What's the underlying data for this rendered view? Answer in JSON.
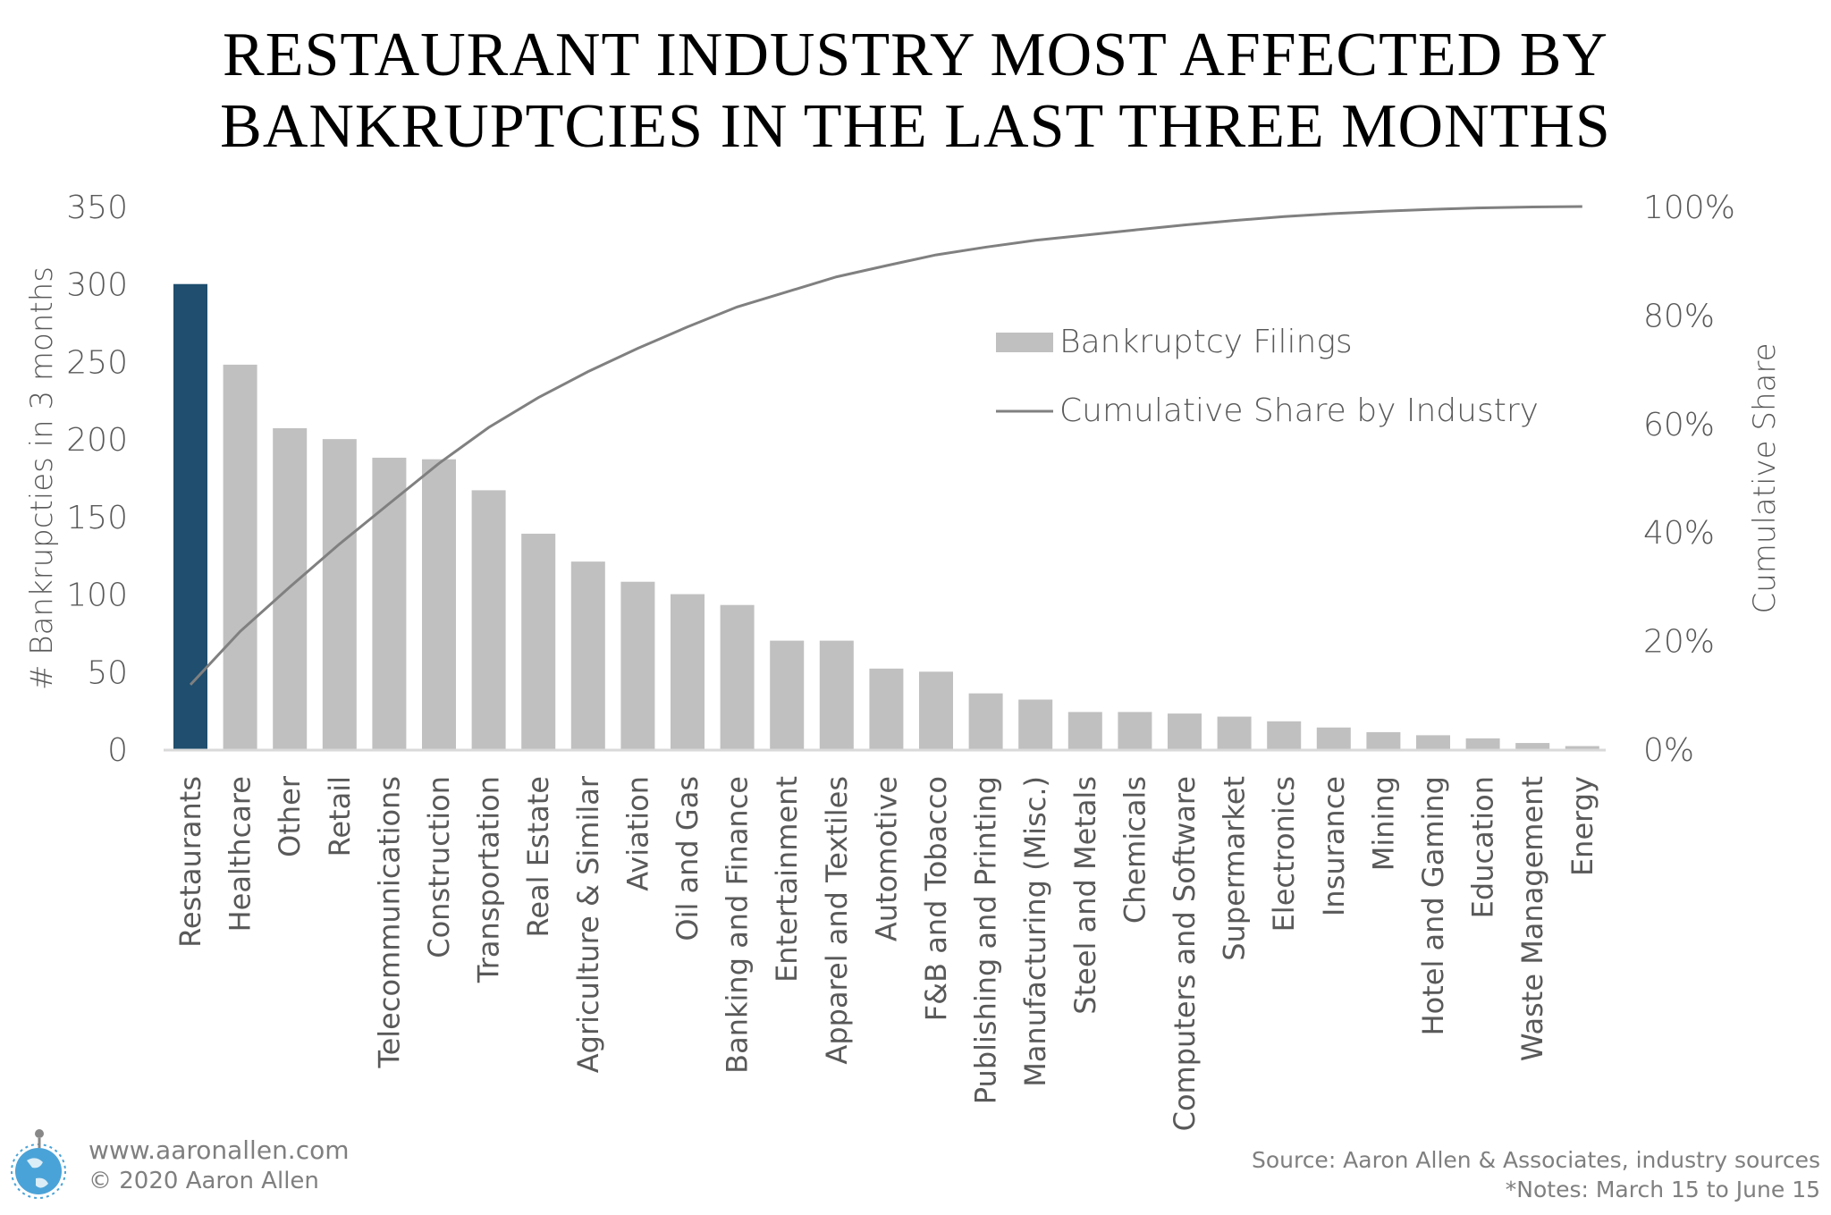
{
  "chart_data": {
    "type": "bar",
    "title": [
      "RESTAURANT INDUSTRY MOST AFFECTED BY",
      "BANKRUPTCIES IN THE LAST THREE MONTHS"
    ],
    "categories": [
      "Restaurants",
      "Healthcare",
      "Other",
      "Retail",
      "Telecommunications",
      "Construction",
      "Transportation",
      "Real Estate",
      "Agriculture & Similar",
      "Aviation",
      "Oil and Gas",
      "Banking and Finance",
      "Entertainment",
      "Apparel and Textiles",
      "Automotive",
      "F&B and Tobacco",
      "Publishing and Printing",
      "Manufacturing (Misc.)",
      "Steel and Metals",
      "Chemicals",
      "Computers and Software",
      "Supermarket",
      "Electronics",
      "Insurance",
      "Mining",
      "Hotel and Gaming",
      "Education",
      "Waste Management",
      "Energy"
    ],
    "series": [
      {
        "name": "Bankruptcy Filings",
        "type": "bar",
        "axis": "left",
        "values": [
          300,
          248,
          207,
          200,
          188,
          187,
          167,
          139,
          121,
          108,
          100,
          93,
          70,
          70,
          52,
          50,
          36,
          32,
          24,
          24,
          23,
          21,
          18,
          14,
          11,
          9,
          7,
          4,
          2
        ]
      },
      {
        "name": "Cumulative Share by Industry",
        "type": "line",
        "axis": "right",
        "derived": "cumulative percent of bar values"
      }
    ],
    "ylabel": "# Bankrupcties in 3 months",
    "ylabel_right": "Cumulative Share",
    "ylim": [
      0,
      350
    ],
    "yticks": [
      "0",
      "50",
      "100",
      "150",
      "200",
      "250",
      "300",
      "350"
    ],
    "ylim_right": [
      0,
      100
    ],
    "yticks_right": [
      "0%",
      "20%",
      "40%",
      "60%",
      "80%",
      "100%"
    ],
    "legend_position": "top-right (inside plot)",
    "grid": false,
    "colors": {
      "highlight": "#1f4e6e",
      "bar": "#c0c0c0",
      "line": "#808080",
      "axis": "#d9d9d9"
    }
  },
  "footer": {
    "website": "www.aaronallen.com",
    "copyright": "© 2020 Aaron Allen",
    "source": "Source: Aaron Allen & Associates, industry sources",
    "notes": "*Notes: March 15 to June 15"
  }
}
